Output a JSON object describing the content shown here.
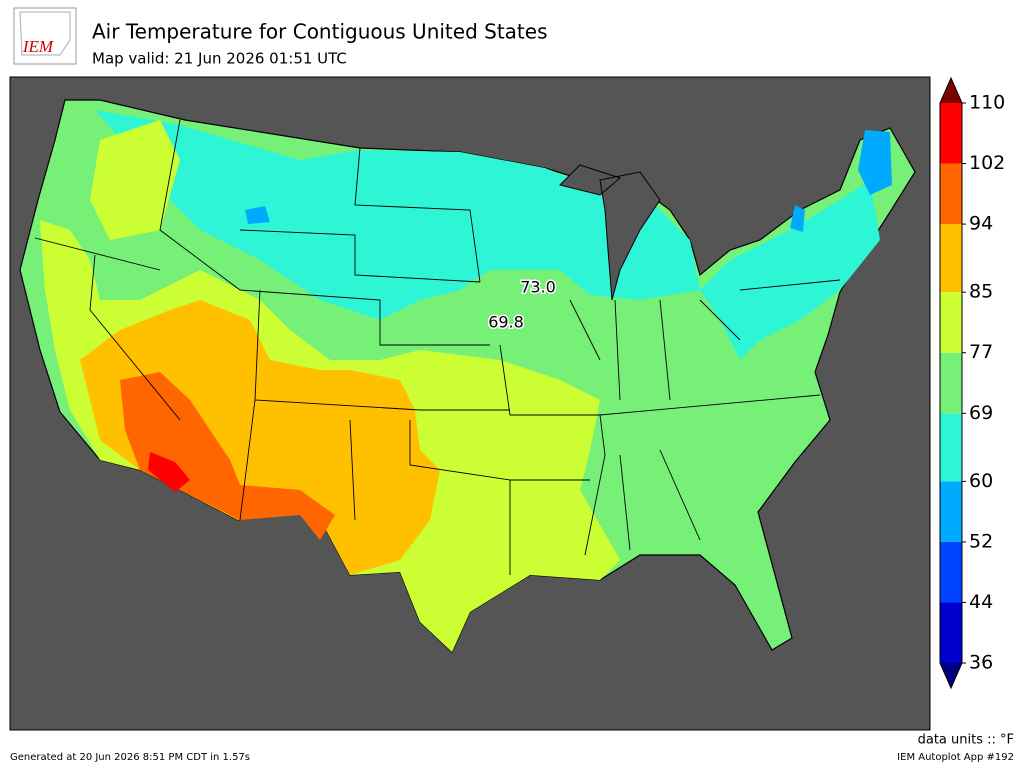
{
  "header": {
    "logo": "IEM",
    "title": "Air Temperature for Contiguous United States",
    "subtitle": "Map valid: 21 Jun 2026 01:51 UTC"
  },
  "map": {
    "contour_labels": [
      "73.0",
      "69.8"
    ]
  },
  "colorbar": {
    "ticks": [
      36,
      44,
      52,
      60,
      69,
      77,
      85,
      94,
      102,
      110
    ],
    "colors": [
      "#0000cc",
      "#0044ff",
      "#00aaff",
      "#2ef5d5",
      "#77f077",
      "#ccff33",
      "#ffc000",
      "#ff6600",
      "#ff0000"
    ],
    "under_color": "#00007f",
    "over_color": "#7f0000",
    "units": "data units :: °F"
  },
  "footer": {
    "generated": "Generated at 20 Jun 2026 8:51 PM CDT in 1.57s",
    "app": "IEM Autoplot App #192"
  }
}
